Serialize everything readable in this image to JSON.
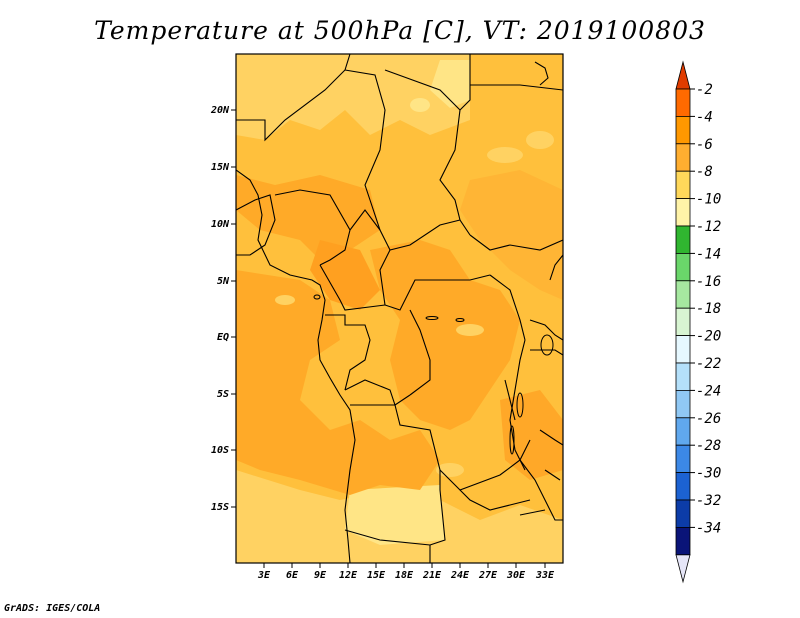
{
  "title": "Temperature at 500hPa [C], VT: 2019100803",
  "credit": "GrADS: IGES/COLA",
  "colors": {
    "field_dominant": "#ffaa28",
    "field_light": "#ffc03c",
    "field_pale": "#ffe07a",
    "border": "#000000"
  },
  "map": {
    "lat_ticks": [
      {
        "label": "20N",
        "lat": 20
      },
      {
        "label": "15N",
        "lat": 15
      },
      {
        "label": "10N",
        "lat": 10
      },
      {
        "label": "5N",
        "lat": 5
      },
      {
        "label": "EQ",
        "lat": 0
      },
      {
        "label": "5S",
        "lat": -5
      },
      {
        "label": "10S",
        "lat": -10
      },
      {
        "label": "15S",
        "lat": -15
      }
    ],
    "lon_ticks": [
      {
        "label": "3E",
        "lon": 3
      },
      {
        "label": "6E",
        "lon": 6
      },
      {
        "label": "9E",
        "lon": 9
      },
      {
        "label": "12E",
        "lon": 12
      },
      {
        "label": "15E",
        "lon": 15
      },
      {
        "label": "18E",
        "lon": 18
      },
      {
        "label": "21E",
        "lon": 21
      },
      {
        "label": "24E",
        "lon": 24
      },
      {
        "label": "27E",
        "lon": 27
      },
      {
        "label": "30E",
        "lon": 30
      },
      {
        "label": "33E",
        "lon": 33
      }
    ]
  },
  "colorbar": {
    "levels": [
      "-2",
      "-4",
      "-6",
      "-8",
      "-10",
      "-12",
      "-14",
      "-16",
      "-18",
      "-20",
      "-22",
      "-24",
      "-26",
      "-28",
      "-30",
      "-32",
      "-34"
    ],
    "colors": [
      "#e03c00",
      "#ff6a00",
      "#ff9800",
      "#ffae30",
      "#ffd85a",
      "#fff3a8",
      "#30b630",
      "#6ad66a",
      "#a6e8a0",
      "#d8f5d2",
      "#e6f8ff",
      "#b4e0fa",
      "#90c8f4",
      "#60a8ee",
      "#3c88e6",
      "#1c62d2",
      "#0c3ca8",
      "#0a1478",
      "#e6e6f8"
    ]
  }
}
